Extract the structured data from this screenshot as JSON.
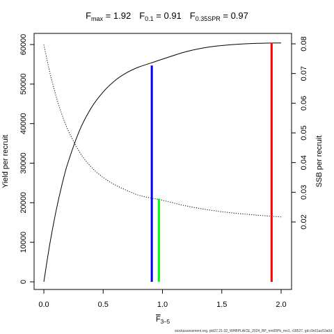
{
  "header": {
    "fmax_label": "F",
    "fmax_sub": "max",
    "fmax_value": " = 1.92",
    "f01_label": "F",
    "f01_sub": "0.1",
    "f01_value": " = 0.91",
    "fspr_label": "F",
    "fspr_sub": "0.35SPR",
    "fspr_value": " = 0.97"
  },
  "footer": {
    "source": "stockassessment.org, pkt27.21-32_WHBPLAICE_2024_BP_nm05Pb_mo1, r18527, git:c9c61ac53a0d"
  },
  "chart_data": {
    "type": "line",
    "title": "",
    "xlabel": "F",
    "xlabel_sub": "3–5",
    "ylabel": "Yield per recruit",
    "y2label": "SSB per recruit",
    "xlim": [
      0,
      2
    ],
    "ylim": [
      0,
      62000
    ],
    "y2lim": [
      0,
      0.082
    ],
    "xticks": [
      "0.0",
      "0.5",
      "1.0",
      "1.5",
      "2.0"
    ],
    "yticks": [
      "0",
      "10000",
      "20000",
      "30000",
      "40000",
      "50000",
      "60000"
    ],
    "y2ticks": [
      "0.02",
      "0.03",
      "0.04",
      "0.05",
      "0.06",
      "0.07",
      "0.08"
    ],
    "grid": false,
    "series": [
      {
        "axis": "left",
        "style": "solid",
        "color": "#000000",
        "x": [
          0,
          0.05,
          0.1,
          0.15,
          0.2,
          0.3,
          0.4,
          0.5,
          0.6,
          0.7,
          0.8,
          0.9,
          1.0,
          1.2,
          1.4,
          1.6,
          1.8,
          2.0
        ],
        "y": [
          0,
          9500,
          17500,
          24200,
          29800,
          38200,
          44000,
          48000,
          50900,
          52900,
          54300,
          55300,
          56300,
          58200,
          59400,
          60000,
          60300,
          60400
        ]
      },
      {
        "axis": "right",
        "style": "dotted",
        "color": "#000000",
        "x": [
          0,
          0.05,
          0.1,
          0.15,
          0.2,
          0.3,
          0.4,
          0.5,
          0.6,
          0.7,
          0.8,
          0.9,
          1.0,
          1.2,
          1.4,
          1.6,
          1.8,
          2.0
        ],
        "y": [
          0.0797,
          0.0705,
          0.0628,
          0.0565,
          0.0513,
          0.0436,
          0.0385,
          0.035,
          0.0325,
          0.0306,
          0.029,
          0.0281,
          0.0273,
          0.0254,
          0.024,
          0.023,
          0.0223,
          0.0217
        ]
      }
    ],
    "reference_lines": [
      {
        "name": "F0.1",
        "x": 0.91,
        "y_top": 54700,
        "color": "#0000ff"
      },
      {
        "name": "F0.35SPR",
        "x": 0.97,
        "y_top": 21000,
        "color": "#00ff00"
      },
      {
        "name": "Fmax",
        "x": 1.92,
        "y_top": 60400,
        "color": "#ff0000"
      }
    ]
  }
}
